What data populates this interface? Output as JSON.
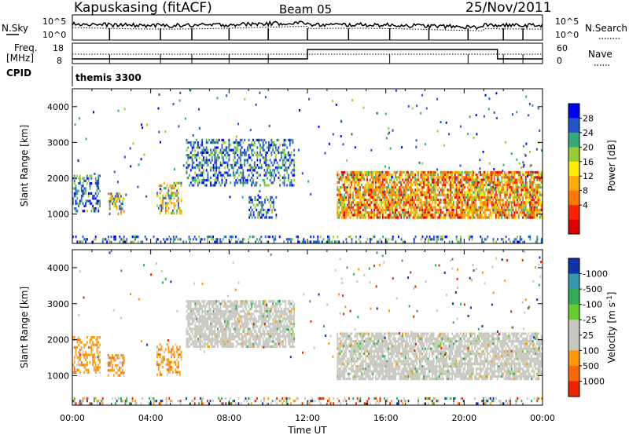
{
  "header": {
    "title": "Kapuskasing (fitACF)",
    "beam": "Beam 05",
    "date": "25/Nov/2011"
  },
  "status_panel": {
    "nsky_label": "N.Sky",
    "nsearch_label": "N.Search",
    "noise_ticks_left": [
      "10^5",
      "10^0"
    ],
    "noise_ticks_right": [
      "10^5",
      "10^0"
    ],
    "freq_label_1": "Freq.",
    "freq_label_2": "[MHz]",
    "freq_ticks": [
      "18",
      "8"
    ],
    "nave_label": "Nave",
    "nave_ticks": [
      "60",
      "0"
    ],
    "cpid_label": "CPID",
    "cpid_value": "themis 3300"
  },
  "chart_data": [
    {
      "type": "heatmap",
      "name": "power",
      "ylabel": "Slant Range [km]",
      "ylim": [
        180,
        4500
      ],
      "yticks": [
        "1000",
        "2000",
        "3000",
        "4000"
      ],
      "xlim_hours": [
        0,
        24
      ],
      "colorbar_label": "Power [dB]",
      "colorbar_ticks": [
        "4",
        "8",
        "12",
        "16",
        "20",
        "24",
        "28"
      ],
      "colorbar_colors": [
        "#0000ff",
        "#2255cc",
        "#33aa77",
        "#99cc33",
        "#ffee00",
        "#ffaa00",
        "#ff7700",
        "#ff2200",
        "#dd0000"
      ],
      "echo_regions": [
        {
          "t": [
            0.0,
            1.4
          ],
          "r": [
            1100,
            2100
          ],
          "level": "low"
        },
        {
          "t": [
            1.8,
            2.6
          ],
          "r": [
            1000,
            1600
          ],
          "level": "medium"
        },
        {
          "t": [
            4.3,
            5.6
          ],
          "r": [
            1000,
            1900
          ],
          "level": "medium"
        },
        {
          "t": [
            5.8,
            11.3
          ],
          "r": [
            1800,
            3100
          ],
          "level": "low"
        },
        {
          "t": [
            9.0,
            10.4
          ],
          "r": [
            900,
            1500
          ],
          "level": "low"
        },
        {
          "t": [
            13.5,
            24.0
          ],
          "r": [
            900,
            2200
          ],
          "level": "high"
        },
        {
          "t": [
            0.0,
            24.0
          ],
          "r": [
            180,
            400
          ],
          "level": "low"
        }
      ]
    },
    {
      "type": "heatmap",
      "name": "velocity",
      "ylabel": "Slant Range [km]",
      "xlabel": "Time UT",
      "ylim": [
        180,
        4500
      ],
      "yticks": [
        "1000",
        "2000",
        "3000",
        "4000"
      ],
      "xticks": [
        "00:00",
        "04:00",
        "08:00",
        "12:00",
        "16:00",
        "20:00",
        "00:00"
      ],
      "xlim_hours": [
        0,
        24
      ],
      "colorbar_label_main": "Velocity  [m s",
      "colorbar_label_sup": "-1",
      "colorbar_label_end": "]",
      "colorbar_ticks": [
        "1000",
        "500",
        "100",
        "25",
        "-25",
        "-100",
        "-500",
        "-1000"
      ],
      "colorbar_colors": [
        "#1133aa",
        "#3399aa",
        "#33aa55",
        "#66cc33",
        "#c8c8c0",
        "#c8c8c0",
        "#ff9900",
        "#ff6600",
        "#ee2200"
      ],
      "echo_regions": [
        {
          "t": [
            0.0,
            1.4
          ],
          "r": [
            1100,
            2100
          ],
          "class": "negative"
        },
        {
          "t": [
            1.8,
            2.6
          ],
          "r": [
            1000,
            1600
          ],
          "class": "negative"
        },
        {
          "t": [
            4.3,
            5.6
          ],
          "r": [
            1000,
            1900
          ],
          "class": "negative"
        },
        {
          "t": [
            5.8,
            11.3
          ],
          "r": [
            1800,
            3100
          ],
          "class": "ground"
        },
        {
          "t": [
            13.5,
            24.0
          ],
          "r": [
            900,
            2200
          ],
          "class": "ground"
        },
        {
          "t": [
            0.0,
            24.0
          ],
          "r": [
            180,
            400
          ],
          "class": "mixed"
        }
      ]
    }
  ]
}
